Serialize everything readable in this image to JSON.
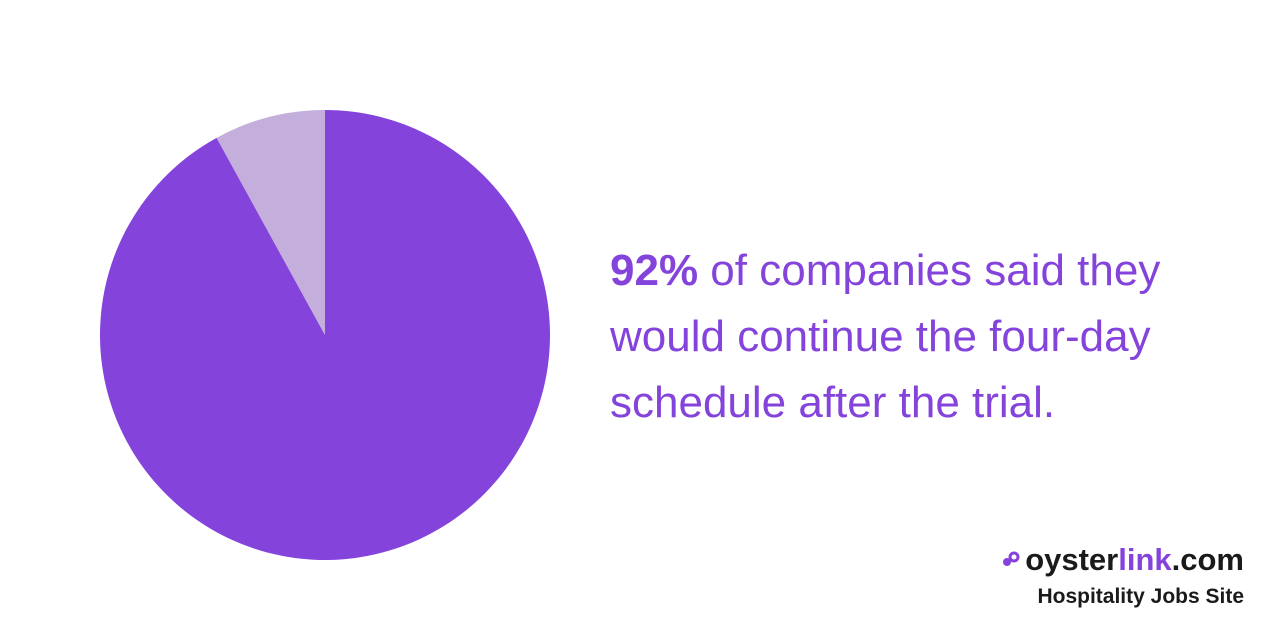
{
  "chart_data": {
    "type": "pie",
    "title": "",
    "slices": [
      {
        "label": "",
        "value": 92,
        "color": "#8444db"
      },
      {
        "label": "",
        "value": 8,
        "color": "#c3aedc"
      }
    ]
  },
  "statement": {
    "highlight": "92%",
    "text": " of companies said they would continue the four-day schedule after the trial."
  },
  "brand": {
    "logo_part1": "oyster",
    "logo_part2": "link",
    "logo_part3": ".com",
    "tagline": "Hospitality Jobs Site",
    "accent_color": "#8444db",
    "icon": "oyster-link-icon"
  }
}
